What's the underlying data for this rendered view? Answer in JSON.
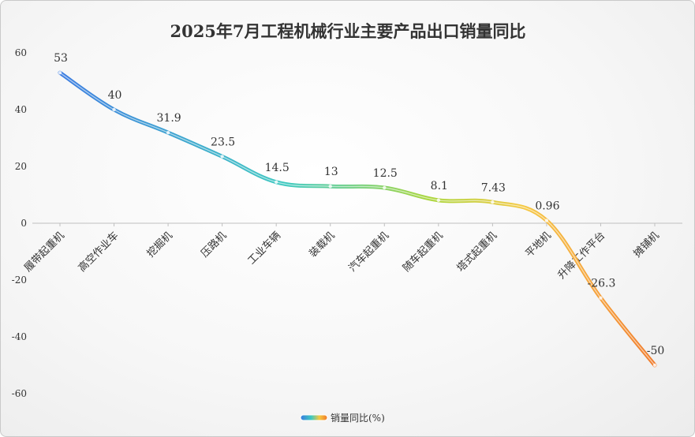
{
  "chart_data": {
    "type": "line",
    "title": "2025年7月工程机械行业主要产品出口销量同比",
    "categories": [
      "履带起重机",
      "高空作业车",
      "挖掘机",
      "压路机",
      "工业车辆",
      "装载机",
      "汽车起重机",
      "随车起重机",
      "塔式起重机",
      "平地机",
      "升降工作平台",
      "摊铺机"
    ],
    "series": [
      {
        "name": "销量同比(%)",
        "values": [
          53,
          40,
          31.9,
          23.5,
          14.5,
          13,
          12.5,
          8.1,
          7.43,
          0.96,
          -26.3,
          -50
        ]
      }
    ],
    "data_labels": [
      "53",
      "40",
      "31.9",
      "23.5",
      "14.5",
      "13",
      "12.5",
      "8.1",
      "7.43",
      "0.96",
      "-26.3",
      "-50"
    ],
    "ylim": [
      -60,
      60
    ],
    "yticks": [
      60,
      40,
      20,
      0,
      -20,
      -40,
      -60
    ],
    "xlabel": "",
    "ylabel": "",
    "legend_position": "bottom",
    "grid": false,
    "colors": [
      "#3a7be0",
      "#3ec9c0",
      "#a9d63c",
      "#f5c842",
      "#f5a13a",
      "#f07a2a"
    ]
  }
}
